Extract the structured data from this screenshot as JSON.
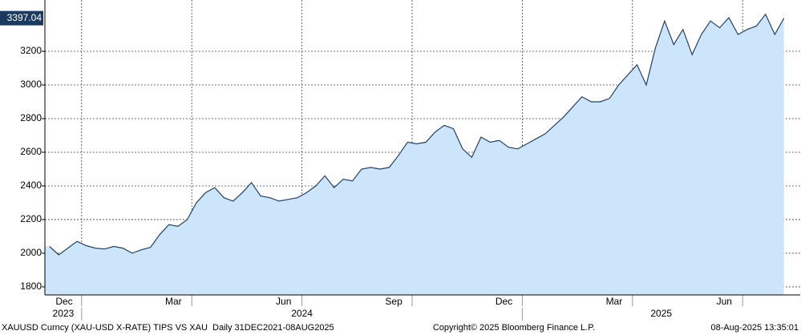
{
  "chart_data": {
    "type": "area",
    "x": [
      "2023-12",
      "2023-12",
      "2023-12",
      "2023-12",
      "2024-01",
      "2024-01",
      "2024-01",
      "2024-01",
      "2024-02",
      "2024-02",
      "2024-02",
      "2024-02",
      "2024-03",
      "2024-03",
      "2024-03",
      "2024-03",
      "2024-04",
      "2024-04",
      "2024-04",
      "2024-04",
      "2024-05",
      "2024-05",
      "2024-05",
      "2024-05",
      "2024-06",
      "2024-06",
      "2024-06",
      "2024-06",
      "2024-07",
      "2024-07",
      "2024-07",
      "2024-07",
      "2024-08",
      "2024-08",
      "2024-08",
      "2024-08",
      "2024-09",
      "2024-09",
      "2024-09",
      "2024-09",
      "2024-10",
      "2024-10",
      "2024-10",
      "2024-10",
      "2024-11",
      "2024-11",
      "2024-11",
      "2024-11",
      "2024-12",
      "2024-12",
      "2024-12",
      "2024-12",
      "2025-01",
      "2025-01",
      "2025-01",
      "2025-01",
      "2025-02",
      "2025-02",
      "2025-02",
      "2025-02",
      "2025-03",
      "2025-03",
      "2025-03",
      "2025-03",
      "2025-04",
      "2025-04",
      "2025-04",
      "2025-04",
      "2025-05",
      "2025-05",
      "2025-05",
      "2025-05",
      "2025-06",
      "2025-06",
      "2025-06",
      "2025-06",
      "2025-07",
      "2025-07",
      "2025-07",
      "2025-07",
      "2025-08"
    ],
    "series": [
      {
        "color": "#2b3f5c",
        "fill": "#cde5fb",
        "values": [
          2040,
          1990,
          2030,
          2070,
          2045,
          2030,
          2025,
          2040,
          2030,
          2000,
          2020,
          2035,
          2110,
          2170,
          2160,
          2200,
          2300,
          2360,
          2390,
          2330,
          2310,
          2360,
          2420,
          2340,
          2330,
          2310,
          2320,
          2330,
          2360,
          2400,
          2460,
          2390,
          2440,
          2430,
          2500,
          2510,
          2500,
          2510,
          2580,
          2660,
          2650,
          2660,
          2720,
          2760,
          2740,
          2620,
          2570,
          2690,
          2660,
          2670,
          2630,
          2620,
          2650,
          2680,
          2710,
          2760,
          2810,
          2870,
          2930,
          2900,
          2900,
          2920,
          3000,
          3060,
          3120,
          3000,
          3220,
          3380,
          3240,
          3330,
          3180,
          3300,
          3380,
          3340,
          3400,
          3300,
          3330,
          3350,
          3420,
          3300,
          3397.04
        ]
      }
    ],
    "ylim": [
      1752,
      3505
    ],
    "yticks": [
      1800,
      2000,
      2200,
      2400,
      2600,
      2800,
      3000,
      3200
    ],
    "xticks": [
      {
        "value": "2023-12",
        "label": "Dec"
      },
      {
        "value": "2024-03",
        "label": "Mar"
      },
      {
        "value": "2024-06",
        "label": "Jun"
      },
      {
        "value": "2024-09",
        "label": "Sep"
      },
      {
        "value": "2024-12",
        "label": "Dec"
      },
      {
        "value": "2025-03",
        "label": "Mar"
      },
      {
        "value": "2025-06",
        "label": "Jun"
      }
    ],
    "year_labels": [
      "2023",
      "2024",
      "2025"
    ],
    "grid": true,
    "footer_left": "XAUUSD Curncy (XAU-USD X-RATE) TIPS VS XAU  Daily 31DEC2021-08AUG2025",
    "footer_center": "Copyright© 2025 Bloomberg Finance L.P.",
    "footer_right": "08-Aug-2025 13:35:01"
  }
}
